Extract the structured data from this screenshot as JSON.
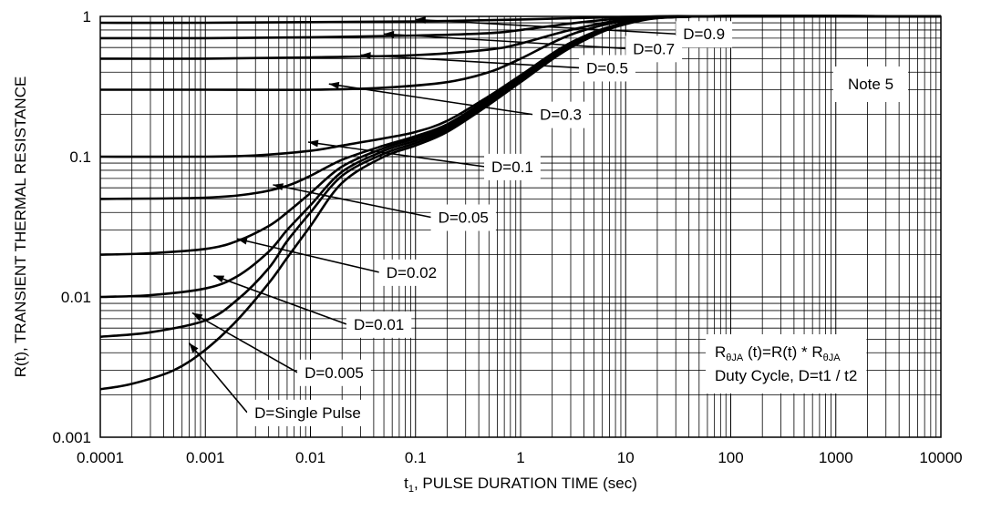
{
  "chart_data": {
    "type": "line",
    "xlabel": {
      "main": "t",
      "sub": "1",
      "rest": ", PULSE DURATION TIME (sec)"
    },
    "ylabel": "R(t), TRANSIENT THERMAL RESISTANCE",
    "x_scale": "log",
    "y_scale": "log",
    "xlim": [
      0.0001,
      10000
    ],
    "ylim": [
      0.001,
      1
    ],
    "grid": true,
    "x_ticks": [
      0.0001,
      0.001,
      0.01,
      0.1,
      1,
      10,
      100,
      1000,
      10000
    ],
    "x_tick_labels": [
      "0.0001",
      "0.001",
      "0.01",
      "0.1",
      "1",
      "10",
      "100",
      "1000",
      "10000"
    ],
    "y_ticks": [
      0.001,
      0.01,
      0.1,
      1
    ],
    "y_tick_labels": [
      "0.001",
      "0.01",
      "0.1",
      "1"
    ],
    "series": [
      {
        "name": "D=0.9",
        "x": [
          0.0001,
          0.001,
          0.01,
          0.1,
          1,
          5,
          20,
          100,
          10000
        ],
        "y": [
          0.9,
          0.9,
          0.91,
          0.92,
          0.95,
          0.98,
          1,
          1,
          1
        ]
      },
      {
        "name": "D=0.7",
        "x": [
          0.0001,
          0.001,
          0.01,
          0.1,
          0.5,
          1,
          5,
          20,
          100,
          10000
        ],
        "y": [
          0.7,
          0.7,
          0.71,
          0.73,
          0.76,
          0.8,
          0.93,
          1,
          1,
          1
        ]
      },
      {
        "name": "D=0.5",
        "x": [
          0.0001,
          0.001,
          0.01,
          0.1,
          0.5,
          1,
          3,
          10,
          40,
          10000
        ],
        "y": [
          0.5,
          0.5,
          0.51,
          0.53,
          0.58,
          0.64,
          0.8,
          0.95,
          1,
          1
        ]
      },
      {
        "name": "D=0.3",
        "x": [
          0.0001,
          0.001,
          0.01,
          0.05,
          0.2,
          0.5,
          1,
          3,
          10,
          50,
          10000
        ],
        "y": [
          0.3,
          0.3,
          0.3,
          0.31,
          0.34,
          0.4,
          0.5,
          0.74,
          0.93,
          1,
          1
        ]
      },
      {
        "name": "D=0.1",
        "x": [
          0.0001,
          0.001,
          0.003,
          0.01,
          0.02,
          0.05,
          0.1,
          0.2,
          0.5,
          1,
          3,
          10,
          50,
          10000
        ],
        "y": [
          0.1,
          0.1,
          0.102,
          0.11,
          0.12,
          0.135,
          0.15,
          0.18,
          0.27,
          0.38,
          0.65,
          0.9,
          1,
          1
        ]
      },
      {
        "name": "D=0.05",
        "x": [
          0.0001,
          0.001,
          0.003,
          0.006,
          0.01,
          0.02,
          0.05,
          0.1,
          0.2,
          0.5,
          1,
          3,
          10,
          50,
          10000
        ],
        "y": [
          0.05,
          0.051,
          0.055,
          0.062,
          0.073,
          0.095,
          0.12,
          0.14,
          0.17,
          0.26,
          0.37,
          0.64,
          0.9,
          1,
          1
        ]
      },
      {
        "name": "D=0.02",
        "x": [
          0.0001,
          0.0003,
          0.001,
          0.002,
          0.004,
          0.006,
          0.01,
          0.02,
          0.05,
          0.1,
          0.2,
          0.5,
          1,
          3,
          10,
          50,
          10000
        ],
        "y": [
          0.02,
          0.0205,
          0.022,
          0.025,
          0.032,
          0.04,
          0.055,
          0.085,
          0.115,
          0.135,
          0.165,
          0.25,
          0.36,
          0.63,
          0.9,
          1,
          1
        ]
      },
      {
        "name": "D=0.01",
        "x": [
          0.0001,
          0.0003,
          0.001,
          0.002,
          0.004,
          0.006,
          0.01,
          0.02,
          0.05,
          0.1,
          0.2,
          0.5,
          1,
          3,
          10,
          50,
          10000
        ],
        "y": [
          0.01,
          0.0103,
          0.0115,
          0.014,
          0.021,
          0.03,
          0.045,
          0.078,
          0.11,
          0.13,
          0.16,
          0.245,
          0.35,
          0.62,
          0.89,
          1,
          1
        ]
      },
      {
        "name": "D=0.005",
        "x": [
          0.0001,
          0.0003,
          0.001,
          0.002,
          0.004,
          0.006,
          0.01,
          0.02,
          0.05,
          0.1,
          0.2,
          0.5,
          1,
          3,
          10,
          50,
          10000
        ],
        "y": [
          0.0052,
          0.0056,
          0.0068,
          0.0095,
          0.016,
          0.025,
          0.04,
          0.073,
          0.105,
          0.125,
          0.155,
          0.24,
          0.345,
          0.61,
          0.89,
          1,
          1
        ]
      },
      {
        "name": "D=Single Pulse",
        "x": [
          0.0001,
          0.0002,
          0.0005,
          0.001,
          0.002,
          0.004,
          0.006,
          0.01,
          0.02,
          0.05,
          0.1,
          0.2,
          0.5,
          1,
          3,
          10,
          50,
          10000
        ],
        "y": [
          0.0022,
          0.0024,
          0.003,
          0.0042,
          0.0068,
          0.0125,
          0.019,
          0.032,
          0.065,
          0.1,
          0.12,
          0.15,
          0.235,
          0.34,
          0.6,
          0.88,
          1,
          1
        ]
      }
    ],
    "annotations": [
      {
        "label": "D=0.9",
        "arrow_from": [
          30,
          0.75
        ],
        "arrow_to": [
          0.1,
          0.95
        ]
      },
      {
        "label": "D=0.7",
        "arrow_from": [
          10,
          0.59
        ],
        "arrow_to": [
          0.05,
          0.75
        ]
      },
      {
        "label": "D=0.5",
        "arrow_from": [
          3.6,
          0.43
        ],
        "arrow_to": [
          0.03,
          0.53
        ]
      },
      {
        "label": "D=0.3",
        "arrow_from": [
          1.3,
          0.2
        ],
        "arrow_to": [
          0.015,
          0.33
        ]
      },
      {
        "label": "D=0.1",
        "arrow_from": [
          0.45,
          0.085
        ],
        "arrow_to": [
          0.0095,
          0.127
        ]
      },
      {
        "label": "D=0.05",
        "arrow_from": [
          0.14,
          0.037
        ],
        "arrow_to": [
          0.0044,
          0.063
        ]
      },
      {
        "label": "D=0.02",
        "arrow_from": [
          0.045,
          0.015
        ],
        "arrow_to": [
          0.002,
          0.026
        ]
      },
      {
        "label": "D=0.01",
        "arrow_from": [
          0.022,
          0.0064
        ],
        "arrow_to": [
          0.0012,
          0.0142
        ]
      },
      {
        "label": "D=0.005",
        "arrow_from": [
          0.0075,
          0.0029
        ],
        "arrow_to": [
          0.00075,
          0.0077
        ]
      },
      {
        "label": "D=Single Pulse",
        "arrow_from": [
          0.0025,
          0.0015
        ],
        "arrow_to": [
          0.0007,
          0.0047
        ]
      }
    ],
    "notes": [
      {
        "text": "Note 5"
      }
    ],
    "formula": {
      "line1": {
        "a": "R",
        "a_sub": "θJA",
        "b": " (t)=R(t) * R",
        "b_sub": "θJA"
      },
      "line2": "Duty Cycle, D=t1 / t2"
    }
  }
}
